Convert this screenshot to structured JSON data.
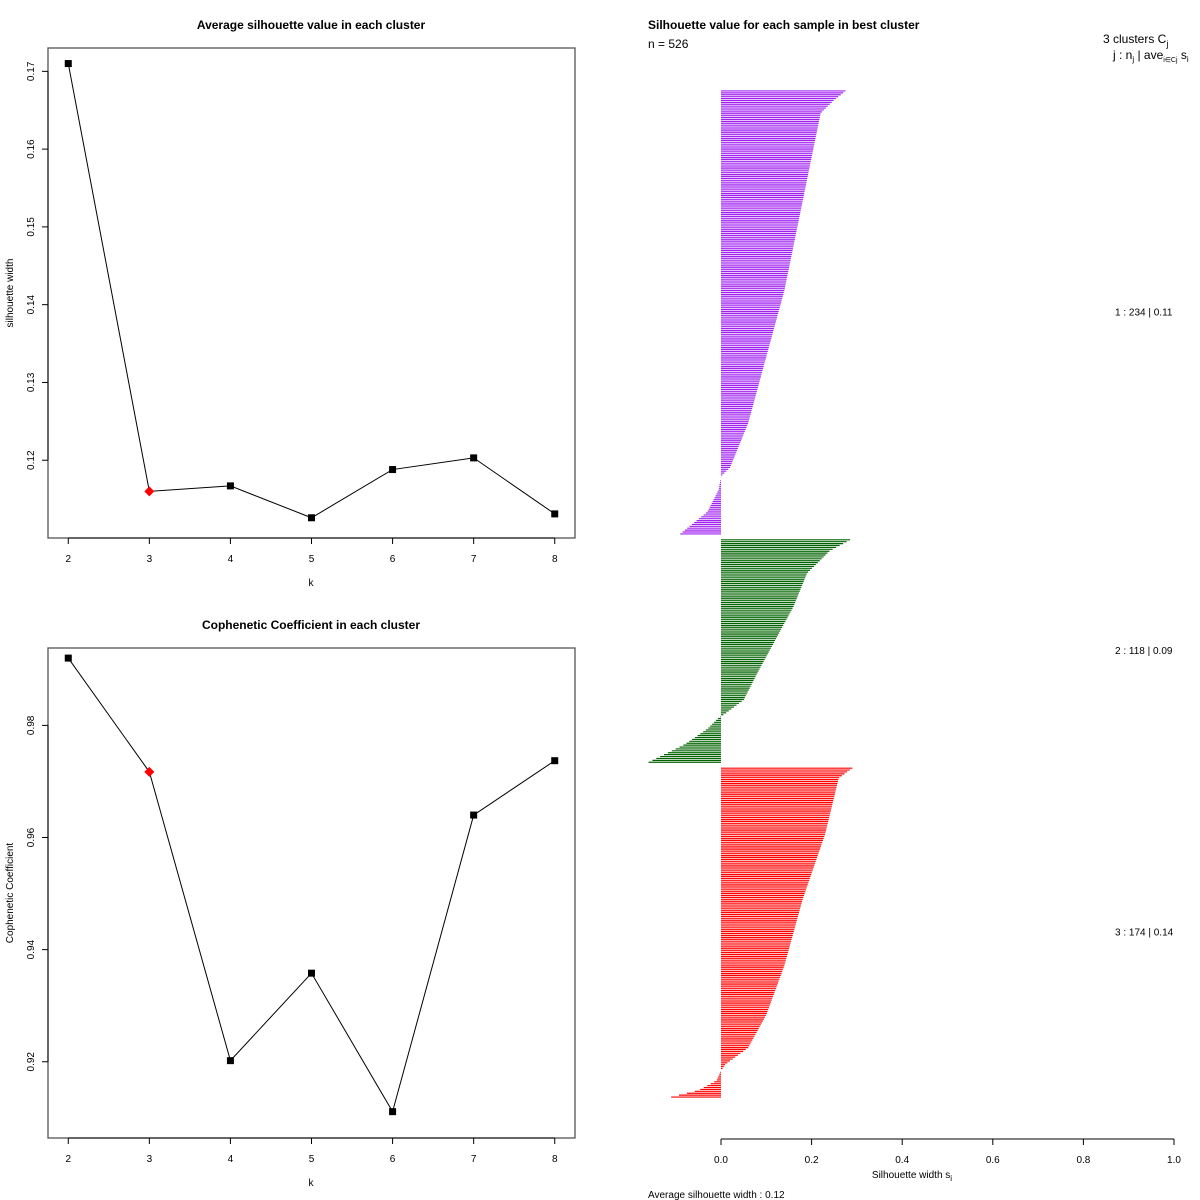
{
  "chart_data": [
    {
      "type": "line",
      "title": "Average silhouette value in each cluster",
      "xlabel": "k",
      "ylabel": "silhouette width",
      "x": [
        2,
        3,
        4,
        5,
        6,
        7,
        8
      ],
      "values": [
        0.171,
        0.116,
        0.1167,
        0.1126,
        0.1188,
        0.1203,
        0.1131
      ],
      "highlight_k": 3,
      "highlight_color": "#ff0000",
      "point_color": "#000000",
      "xticks": [
        "2",
        "3",
        "4",
        "5",
        "6",
        "7",
        "8"
      ],
      "yticks": [
        "0.12",
        "0.13",
        "0.14",
        "0.15",
        "0.16",
        "0.17"
      ],
      "ylim": [
        0.11,
        0.173
      ],
      "xlim": [
        1.75,
        8.25
      ],
      "grid": false
    },
    {
      "type": "line",
      "title": "Cophenetic Coefficient in each cluster",
      "xlabel": "k",
      "ylabel": "Cophenetic Coefficient",
      "x": [
        2,
        3,
        4,
        5,
        6,
        7,
        8
      ],
      "values": [
        0.992,
        0.9717,
        0.9202,
        0.9358,
        0.9111,
        0.964,
        0.9737
      ],
      "highlight_k": 3,
      "highlight_color": "#ff0000",
      "point_color": "#000000",
      "xticks": [
        "2",
        "3",
        "4",
        "5",
        "6",
        "7",
        "8"
      ],
      "yticks": [
        "0.92",
        "0.94",
        "0.96",
        "0.98"
      ],
      "ylim": [
        0.9064,
        0.9938
      ],
      "xlim": [
        1.75,
        8.25
      ],
      "grid": false
    },
    {
      "type": "bar",
      "orientation": "horizontal",
      "title": "Silhouette value for each sample in best cluster",
      "n_label": "n = 526",
      "xlabel": "Silhouette width s",
      "xlabel_sub": "i",
      "xticks": [
        "0.0",
        "0.2",
        "0.4",
        "0.6",
        "0.8",
        "1.0"
      ],
      "xlim": [
        0,
        1
      ],
      "legend_header": "3  clusters  C",
      "legend_header_sub": "j",
      "legend_sub": "j :  n",
      "legend_sub_sub": "j",
      "legend_sub_rest": " | ave",
      "legend_sub_ave_sub": "i∈Cj",
      "legend_sub_tail": " s",
      "legend_sub_tail_sub": "i",
      "footer": "Average silhouette width :  0.12",
      "clusters": [
        {
          "id": 1,
          "n": 234,
          "avg": 0.11,
          "label": "1 :   234  |  0.11",
          "color": "#a020f0",
          "profile": [
            [
              0,
              0.275
            ],
            [
              0.02,
              0.25
            ],
            [
              0.05,
              0.22
            ],
            [
              0.15,
              0.2
            ],
            [
              0.3,
              0.17
            ],
            [
              0.45,
              0.14
            ],
            [
              0.6,
              0.1
            ],
            [
              0.75,
              0.06
            ],
            [
              0.85,
              0.02
            ],
            [
              0.87,
              0.0
            ],
            [
              0.9,
              -0.005
            ],
            [
              0.95,
              -0.03
            ],
            [
              1,
              -0.09
            ]
          ]
        },
        {
          "id": 2,
          "n": 118,
          "avg": 0.09,
          "label": "2 :   118  |  0.09",
          "color": "#006400",
          "profile": [
            [
              0,
              0.285
            ],
            [
              0.05,
              0.24
            ],
            [
              0.15,
              0.19
            ],
            [
              0.3,
              0.16
            ],
            [
              0.45,
              0.12
            ],
            [
              0.6,
              0.08
            ],
            [
              0.72,
              0.05
            ],
            [
              0.78,
              0.01
            ],
            [
              0.8,
              -0.005
            ],
            [
              0.85,
              -0.03
            ],
            [
              0.92,
              -0.08
            ],
            [
              1,
              -0.16
            ]
          ]
        },
        {
          "id": 3,
          "n": 174,
          "avg": 0.14,
          "label": "3 :   174  |  0.14",
          "color": "#ff0000",
          "profile": [
            [
              0,
              0.29
            ],
            [
              0.03,
              0.26
            ],
            [
              0.2,
              0.23
            ],
            [
              0.4,
              0.18
            ],
            [
              0.6,
              0.14
            ],
            [
              0.75,
              0.1
            ],
            [
              0.85,
              0.06
            ],
            [
              0.9,
              0.01
            ],
            [
              0.92,
              0.0
            ],
            [
              0.95,
              -0.01
            ],
            [
              0.98,
              -0.05
            ],
            [
              1,
              -0.11
            ]
          ]
        }
      ]
    }
  ]
}
